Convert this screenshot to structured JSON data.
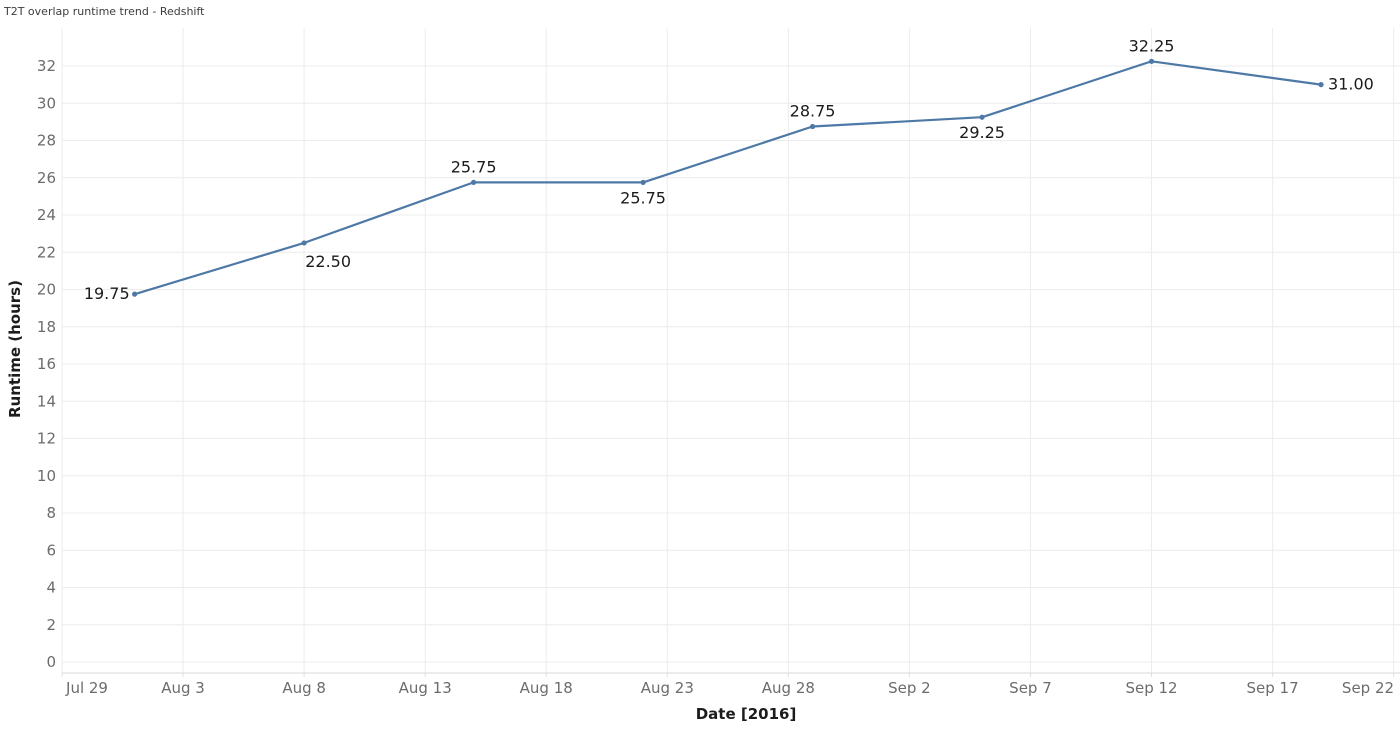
{
  "chart_data": {
    "type": "line",
    "title": "T2T overlap runtime trend - Redshift",
    "xlabel": "Date [2016]",
    "ylabel": "Runtime (hours)",
    "grid": true,
    "legend": "none",
    "ylim": [
      0,
      32
    ],
    "y_ticks": [
      0,
      2,
      4,
      6,
      8,
      10,
      12,
      14,
      16,
      18,
      20,
      22,
      24,
      26,
      28,
      30,
      32
    ],
    "x_ticks": [
      {
        "label": "Jul 29",
        "day": 0
      },
      {
        "label": "Aug 3",
        "day": 5
      },
      {
        "label": "Aug 8",
        "day": 10
      },
      {
        "label": "Aug 13",
        "day": 15
      },
      {
        "label": "Aug 18",
        "day": 20
      },
      {
        "label": "Aug 23",
        "day": 25
      },
      {
        "label": "Aug 28",
        "day": 30
      },
      {
        "label": "Sep 2",
        "day": 35
      },
      {
        "label": "Sep 7",
        "day": 40
      },
      {
        "label": "Sep 12",
        "day": 45
      },
      {
        "label": "Sep 17",
        "day": 50
      },
      {
        "label": "Sep 22",
        "day": 55
      }
    ],
    "series": [
      {
        "name": "T2T overlap runtime",
        "color": "#4e79a7",
        "points": [
          {
            "date": "Aug 1",
            "day": 3,
            "value": 19.75,
            "label": "19.75",
            "label_pos": "left"
          },
          {
            "date": "Aug 8",
            "day": 10,
            "value": 22.5,
            "label": "22.50",
            "label_pos": "below-right"
          },
          {
            "date": "Aug 15",
            "day": 17,
            "value": 25.75,
            "label": "25.75",
            "label_pos": "above"
          },
          {
            "date": "Aug 22",
            "day": 24,
            "value": 25.75,
            "label": "25.75",
            "label_pos": "below"
          },
          {
            "date": "Aug 29",
            "day": 31,
            "value": 28.75,
            "label": "28.75",
            "label_pos": "above"
          },
          {
            "date": "Sep 5",
            "day": 38,
            "value": 29.25,
            "label": "29.25",
            "label_pos": "below"
          },
          {
            "date": "Sep 12",
            "day": 45,
            "value": 32.25,
            "label": "32.25",
            "label_pos": "above"
          },
          {
            "date": "Sep 19",
            "day": 52,
            "value": 31.0,
            "label": "31.00",
            "label_pos": "right"
          }
        ]
      }
    ],
    "colors": {
      "line": "#4e79a7",
      "gridline": "#ececec",
      "axis_line": "#d9d9d9",
      "tick_mark": "#e0e0e0",
      "tick_label": "#6c6c6c",
      "data_label": "#1b1b1b",
      "axis_title": "#1c1c1c",
      "title": "#3c3c3c",
      "background": "#ffffff"
    }
  }
}
